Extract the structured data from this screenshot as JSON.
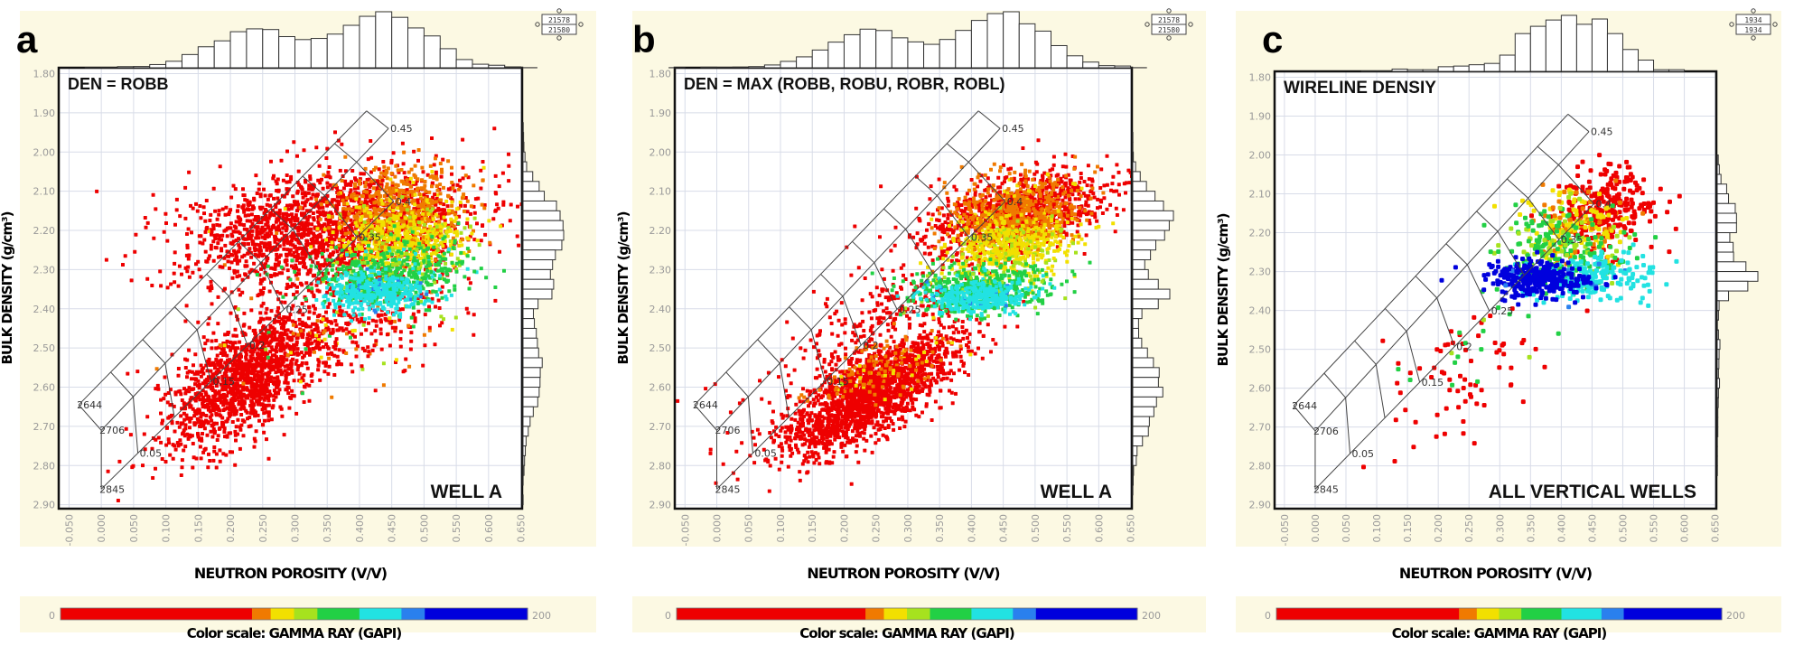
{
  "chart_data": [
    {
      "type": "scatter",
      "panel_label": "a",
      "annotation_title": "DEN = ROBB",
      "annotation_subset": "WELL  A",
      "xlabel": "NEUTRON POROSITY (V/V)",
      "ylabel": "BULK DENSITY (g/cm³)",
      "xlim": [
        -0.05,
        0.65
      ],
      "ylim": [
        1.8,
        2.9
      ],
      "y_axis_inverted": true,
      "grid": true,
      "xticks": [
        "-0.050",
        "0.000",
        "0.050",
        "0.100",
        "0.150",
        "0.200",
        "0.250",
        "0.300",
        "0.350",
        "0.400",
        "0.450",
        "0.500",
        "0.550",
        "0.600",
        "0.650"
      ],
      "yticks": [
        "1.80",
        "1.90",
        "2.00",
        "2.10",
        "2.20",
        "2.30",
        "2.40",
        "2.50",
        "2.60",
        "2.70",
        "2.80",
        "2.90"
      ],
      "marginal_histograms": true,
      "stats_box": [
        "21578",
        "21580"
      ],
      "color_scale": {
        "label": "Color scale: GAMMA RAY (GAPI)",
        "min_label": "0",
        "max_label": "200",
        "min": 0,
        "max": 200
      },
      "point_clouds": [
        {
          "center": [
            0.22,
            2.58
          ],
          "spread": [
            0.06,
            0.09
          ],
          "corr": 0.6,
          "n": 1400,
          "gamma_ray": [
            40,
            15
          ]
        },
        {
          "center": [
            0.35,
            2.2
          ],
          "spread": [
            0.11,
            0.08
          ],
          "corr": 0.3,
          "n": 1800,
          "gamma_ray": [
            45,
            15
          ]
        },
        {
          "center": [
            0.4,
            2.45
          ],
          "spread": [
            0.08,
            0.06
          ],
          "corr": 0.3,
          "n": 300,
          "gamma_ray": [
            70,
            20
          ]
        },
        {
          "center": [
            0.46,
            2.14
          ],
          "spread": [
            0.05,
            0.05
          ],
          "corr": 0.0,
          "n": 500,
          "gamma_ray": [
            86,
            3
          ]
        },
        {
          "center": [
            0.47,
            2.22
          ],
          "spread": [
            0.05,
            0.04
          ],
          "corr": 0.0,
          "n": 500,
          "gamma_ray": [
            96,
            4
          ]
        },
        {
          "center": [
            0.45,
            2.31
          ],
          "spread": [
            0.06,
            0.04
          ],
          "corr": 0.2,
          "n": 500,
          "gamma_ray": [
            118,
            6
          ]
        },
        {
          "center": [
            0.43,
            2.36
          ],
          "spread": [
            0.04,
            0.025
          ],
          "corr": 0.1,
          "n": 400,
          "gamma_ray": [
            138,
            5
          ]
        }
      ]
    },
    {
      "type": "scatter",
      "panel_label": "b",
      "annotation_title": "DEN = MAX (ROBB, ROBU, ROBR, ROBL)",
      "annotation_subset": "WELL  A",
      "xlabel": "NEUTRON POROSITY (V/V)",
      "ylabel": "BULK DENSITY (g/cm³)",
      "xlim": [
        -0.05,
        0.65
      ],
      "ylim": [
        1.8,
        2.9
      ],
      "y_axis_inverted": true,
      "grid": true,
      "xticks": [
        "-0.050",
        "0.000",
        "0.050",
        "0.100",
        "0.150",
        "0.200",
        "0.250",
        "0.300",
        "0.350",
        "0.400",
        "0.450",
        "0.500",
        "0.550",
        "0.600",
        "0.650"
      ],
      "yticks": [
        "1.80",
        "1.90",
        "2.00",
        "2.10",
        "2.20",
        "2.30",
        "2.40",
        "2.50",
        "2.60",
        "2.70",
        "2.80",
        "2.90"
      ],
      "marginal_histograms": true,
      "stats_box": [
        "21578",
        "21580"
      ],
      "color_scale": {
        "label": "Color scale: GAMMA RAY (GAPI)",
        "min_label": "0",
        "max_label": "200",
        "min": 0,
        "max": 200
      },
      "point_clouds": [
        {
          "center": [
            0.24,
            2.62
          ],
          "spread": [
            0.07,
            0.08
          ],
          "corr": 0.75,
          "n": 1800,
          "gamma_ray": [
            40,
            15
          ]
        },
        {
          "center": [
            0.28,
            2.4
          ],
          "spread": [
            0.1,
            0.12
          ],
          "corr": 0.8,
          "n": 300,
          "gamma_ray": [
            40,
            15
          ]
        },
        {
          "center": [
            0.48,
            2.15
          ],
          "spread": [
            0.07,
            0.05
          ],
          "corr": 0.4,
          "n": 900,
          "gamma_ray": [
            50,
            15
          ]
        },
        {
          "center": [
            0.26,
            2.55
          ],
          "spread": [
            0.05,
            0.05
          ],
          "corr": 0.5,
          "n": 150,
          "gamma_ray": [
            86,
            5
          ]
        },
        {
          "center": [
            0.47,
            2.16
          ],
          "spread": [
            0.05,
            0.045
          ],
          "corr": 0.2,
          "n": 700,
          "gamma_ray": [
            86,
            3
          ]
        },
        {
          "center": [
            0.46,
            2.25
          ],
          "spread": [
            0.05,
            0.04
          ],
          "corr": 0.2,
          "n": 500,
          "gamma_ray": [
            96,
            4
          ]
        },
        {
          "center": [
            0.42,
            2.35
          ],
          "spread": [
            0.055,
            0.03
          ],
          "corr": 0.2,
          "n": 500,
          "gamma_ray": [
            118,
            5
          ]
        },
        {
          "center": [
            0.41,
            2.37
          ],
          "spread": [
            0.04,
            0.02
          ],
          "corr": 0.1,
          "n": 350,
          "gamma_ray": [
            138,
            4
          ]
        }
      ]
    },
    {
      "type": "scatter",
      "panel_label": "c",
      "annotation_title": "WIRELINE DENSIY",
      "annotation_subset": "ALL VERTICAL WELLS",
      "xlabel": "NEUTRON POROSITY (V/V)",
      "ylabel": "BULK DENSITY (g/cm³)",
      "xlim": [
        -0.05,
        0.65
      ],
      "ylim": [
        1.8,
        2.9
      ],
      "y_axis_inverted": true,
      "grid": true,
      "xticks": [
        "-0.050",
        "0.000",
        "0.050",
        "0.100",
        "0.150",
        "0.200",
        "0.250",
        "0.300",
        "0.350",
        "0.400",
        "0.450",
        "0.500",
        "0.550",
        "0.600",
        "0.650"
      ],
      "yticks": [
        "1.80",
        "1.90",
        "2.00",
        "2.10",
        "2.20",
        "2.30",
        "2.40",
        "2.50",
        "2.60",
        "2.70",
        "2.80",
        "2.90"
      ],
      "marginal_histograms": true,
      "stats_box": [
        "1934",
        "1934"
      ],
      "color_scale": {
        "label": "Color scale: GAMMA RAY (GAPI)",
        "min_label": "0",
        "max_label": "200",
        "min": 0,
        "max": 200
      },
      "point_clouds": [
        {
          "center": [
            0.23,
            2.57
          ],
          "spread": [
            0.07,
            0.1
          ],
          "corr": 0.5,
          "n": 70,
          "gamma_ray": [
            40,
            15
          ]
        },
        {
          "center": [
            0.26,
            2.5
          ],
          "spread": [
            0.06,
            0.07
          ],
          "corr": 0.3,
          "n": 20,
          "gamma_ray": [
            115,
            5
          ]
        },
        {
          "center": [
            0.48,
            2.13
          ],
          "spread": [
            0.04,
            0.05
          ],
          "corr": 0.0,
          "n": 250,
          "gamma_ray": [
            45,
            15
          ]
        },
        {
          "center": [
            0.42,
            2.18
          ],
          "spread": [
            0.04,
            0.05
          ],
          "corr": 0.0,
          "n": 200,
          "gamma_ray": [
            92,
            6
          ]
        },
        {
          "center": [
            0.4,
            2.25
          ],
          "spread": [
            0.05,
            0.05
          ],
          "corr": 0.0,
          "n": 200,
          "gamma_ray": [
            115,
            6
          ]
        },
        {
          "center": [
            0.45,
            2.32
          ],
          "spread": [
            0.05,
            0.03
          ],
          "corr": 0.0,
          "n": 200,
          "gamma_ray": [
            138,
            5
          ]
        },
        {
          "center": [
            0.36,
            2.32
          ],
          "spread": [
            0.04,
            0.025
          ],
          "corr": 0.0,
          "n": 300,
          "gamma_ray": [
            175,
            10
          ]
        }
      ]
    }
  ],
  "overlay": {
    "lines": [
      {
        "matrix_label": "2644",
        "p0": [
          -0.035,
          2.645
        ],
        "p_end": [
          0.411,
          1.895
        ],
        "porosity_max": 0.45
      },
      {
        "matrix_label": "2706",
        "p0": [
          0.0,
          2.71
        ],
        "p_end": [
          0.445,
          1.94
        ],
        "porosity_max": 0.45
      },
      {
        "matrix_label": "2845",
        "p0": [
          0.0,
          2.86
        ],
        "p_end": [
          0.453,
          2.126
        ],
        "porosity_max": 0.4
      }
    ],
    "porosity_labels": [
      {
        "text": "0.05",
        "line": 2,
        "porosity": 0.05
      },
      {
        "text": "0.15",
        "line": 2,
        "porosity": 0.15
      },
      {
        "text": "0.2",
        "line": 2,
        "porosity": 0.2
      },
      {
        "text": "0.25",
        "line": 2,
        "porosity": 0.25
      },
      {
        "text": "0.35",
        "line": 2,
        "porosity": 0.35
      },
      {
        "text": "0.4",
        "line": 2,
        "porosity": 0.4
      },
      {
        "text": "0.45",
        "line": 1,
        "porosity": 0.45
      }
    ]
  },
  "color_stops": [
    {
      "from": 0,
      "to": 82,
      "color": "#ee0000"
    },
    {
      "from": 82,
      "to": 90,
      "color": "#f07a00"
    },
    {
      "from": 90,
      "to": 100,
      "color": "#f2e000"
    },
    {
      "from": 100,
      "to": 110,
      "color": "#a6e21e"
    },
    {
      "from": 110,
      "to": 128,
      "color": "#22d045"
    },
    {
      "from": 128,
      "to": 146,
      "color": "#22e2e2"
    },
    {
      "from": 146,
      "to": 156,
      "color": "#2a80ee"
    },
    {
      "from": 156,
      "to": 200,
      "color": "#0000dd"
    }
  ],
  "colors": {
    "panel_background": "#fcf9e3",
    "plot_background": "#ffffff",
    "grid": "#d8dce8"
  }
}
